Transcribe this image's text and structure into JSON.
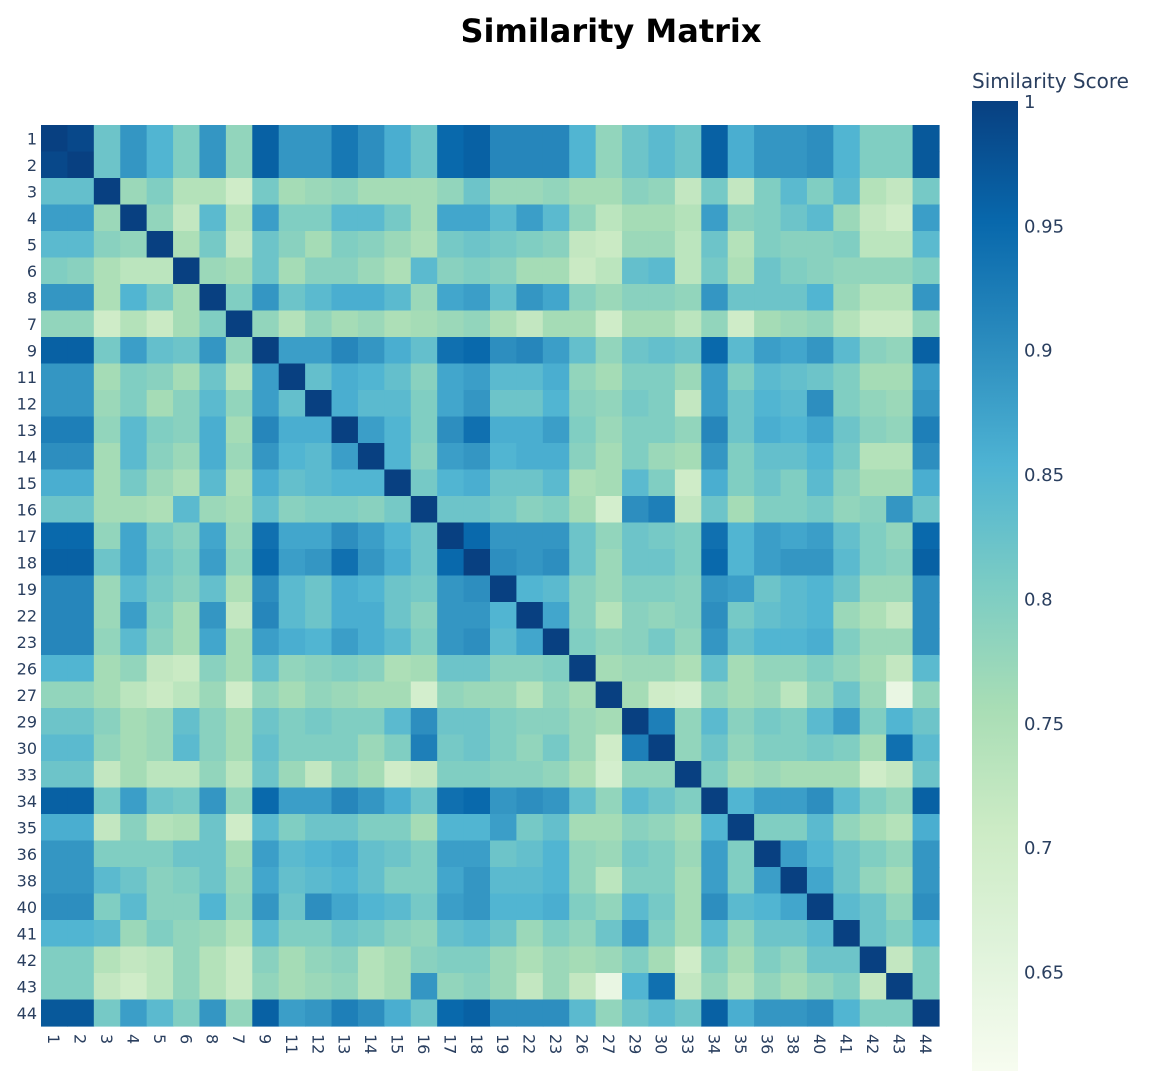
{
  "chart_data": {
    "type": "heatmap",
    "title": "Similarity Matrix",
    "xlabel": "",
    "ylabel": "",
    "colorbar": {
      "title": "Similarity Score",
      "colorscale": "GnBu",
      "range": [
        0.61,
        1
      ],
      "ticks": [
        "1",
        "0.95",
        "0.9",
        "0.85",
        "0.8",
        "0.75",
        "0.7",
        "0.65"
      ]
    },
    "labels": [
      "1",
      "2",
      "3",
      "4",
      "5",
      "6",
      "8",
      "7",
      "9",
      "11",
      "12",
      "13",
      "14",
      "15",
      "16",
      "17",
      "18",
      "19",
      "22",
      "23",
      "26",
      "27",
      "29",
      "30",
      "33",
      "34",
      "35",
      "36",
      "38",
      "40",
      "41",
      "42",
      "43",
      "44"
    ],
    "z": [
      [
        1.0,
        0.99,
        0.82,
        0.89,
        0.85,
        0.8,
        0.89,
        0.78,
        0.96,
        0.89,
        0.89,
        0.93,
        0.9,
        0.86,
        0.82,
        0.95,
        0.96,
        0.91,
        0.91,
        0.91,
        0.85,
        0.78,
        0.82,
        0.84,
        0.82,
        0.96,
        0.86,
        0.89,
        0.89,
        0.9,
        0.85,
        0.8,
        0.8,
        0.97
      ],
      [
        0.99,
        1.0,
        0.82,
        0.89,
        0.85,
        0.8,
        0.89,
        0.78,
        0.96,
        0.89,
        0.89,
        0.93,
        0.9,
        0.86,
        0.82,
        0.95,
        0.96,
        0.91,
        0.91,
        0.91,
        0.85,
        0.78,
        0.82,
        0.84,
        0.82,
        0.96,
        0.86,
        0.89,
        0.89,
        0.9,
        0.85,
        0.8,
        0.8,
        0.97
      ],
      [
        0.83,
        0.83,
        1.0,
        0.77,
        0.8,
        0.74,
        0.74,
        0.7,
        0.81,
        0.76,
        0.77,
        0.78,
        0.76,
        0.76,
        0.76,
        0.78,
        0.82,
        0.77,
        0.77,
        0.78,
        0.76,
        0.76,
        0.79,
        0.78,
        0.72,
        0.81,
        0.72,
        0.8,
        0.84,
        0.8,
        0.84,
        0.74,
        0.72,
        0.81
      ],
      [
        0.88,
        0.88,
        0.77,
        1.0,
        0.78,
        0.72,
        0.84,
        0.74,
        0.88,
        0.8,
        0.8,
        0.84,
        0.84,
        0.81,
        0.76,
        0.87,
        0.87,
        0.84,
        0.88,
        0.84,
        0.78,
        0.73,
        0.76,
        0.76,
        0.74,
        0.88,
        0.79,
        0.8,
        0.82,
        0.84,
        0.77,
        0.72,
        0.7,
        0.88
      ],
      [
        0.84,
        0.84,
        0.79,
        0.78,
        1.0,
        0.75,
        0.81,
        0.72,
        0.82,
        0.79,
        0.76,
        0.8,
        0.79,
        0.77,
        0.75,
        0.81,
        0.82,
        0.81,
        0.8,
        0.79,
        0.72,
        0.71,
        0.77,
        0.77,
        0.73,
        0.82,
        0.74,
        0.8,
        0.79,
        0.79,
        0.8,
        0.73,
        0.73,
        0.84
      ],
      [
        0.8,
        0.79,
        0.75,
        0.73,
        0.73,
        1.0,
        0.77,
        0.76,
        0.82,
        0.76,
        0.79,
        0.79,
        0.77,
        0.75,
        0.84,
        0.79,
        0.8,
        0.79,
        0.76,
        0.76,
        0.71,
        0.73,
        0.83,
        0.84,
        0.73,
        0.81,
        0.75,
        0.82,
        0.8,
        0.79,
        0.78,
        0.78,
        0.78,
        0.8
      ],
      [
        0.89,
        0.89,
        0.75,
        0.85,
        0.81,
        0.76,
        1.0,
        0.8,
        0.89,
        0.82,
        0.84,
        0.86,
        0.86,
        0.84,
        0.77,
        0.87,
        0.88,
        0.83,
        0.89,
        0.87,
        0.79,
        0.77,
        0.79,
        0.79,
        0.78,
        0.89,
        0.82,
        0.82,
        0.82,
        0.85,
        0.77,
        0.74,
        0.74,
        0.89
      ],
      [
        0.78,
        0.78,
        0.7,
        0.74,
        0.71,
        0.76,
        0.8,
        1.0,
        0.78,
        0.74,
        0.78,
        0.76,
        0.77,
        0.75,
        0.76,
        0.77,
        0.78,
        0.75,
        0.72,
        0.76,
        0.76,
        0.7,
        0.76,
        0.76,
        0.73,
        0.78,
        0.7,
        0.76,
        0.77,
        0.78,
        0.74,
        0.71,
        0.71,
        0.78
      ],
      [
        0.96,
        0.96,
        0.81,
        0.88,
        0.83,
        0.82,
        0.89,
        0.78,
        1.0,
        0.88,
        0.88,
        0.91,
        0.89,
        0.86,
        0.83,
        0.94,
        0.95,
        0.9,
        0.91,
        0.88,
        0.83,
        0.78,
        0.82,
        0.83,
        0.82,
        0.95,
        0.84,
        0.88,
        0.87,
        0.89,
        0.84,
        0.79,
        0.78,
        0.96
      ],
      [
        0.89,
        0.89,
        0.76,
        0.8,
        0.79,
        0.76,
        0.82,
        0.74,
        0.88,
        1.0,
        0.83,
        0.86,
        0.85,
        0.83,
        0.79,
        0.87,
        0.88,
        0.84,
        0.84,
        0.86,
        0.78,
        0.76,
        0.8,
        0.8,
        0.77,
        0.88,
        0.8,
        0.84,
        0.83,
        0.82,
        0.8,
        0.76,
        0.76,
        0.88
      ],
      [
        0.89,
        0.89,
        0.77,
        0.8,
        0.76,
        0.79,
        0.84,
        0.78,
        0.88,
        0.83,
        1.0,
        0.86,
        0.84,
        0.84,
        0.8,
        0.87,
        0.89,
        0.82,
        0.82,
        0.85,
        0.79,
        0.78,
        0.81,
        0.8,
        0.72,
        0.88,
        0.82,
        0.85,
        0.84,
        0.9,
        0.8,
        0.78,
        0.77,
        0.89
      ],
      [
        0.92,
        0.92,
        0.78,
        0.84,
        0.8,
        0.79,
        0.86,
        0.76,
        0.91,
        0.86,
        0.86,
        1.0,
        0.88,
        0.85,
        0.8,
        0.9,
        0.94,
        0.86,
        0.86,
        0.88,
        0.8,
        0.77,
        0.8,
        0.8,
        0.78,
        0.91,
        0.82,
        0.86,
        0.85,
        0.87,
        0.82,
        0.79,
        0.78,
        0.92
      ],
      [
        0.9,
        0.9,
        0.76,
        0.84,
        0.79,
        0.77,
        0.86,
        0.77,
        0.89,
        0.85,
        0.84,
        0.88,
        1.0,
        0.85,
        0.79,
        0.88,
        0.89,
        0.85,
        0.86,
        0.86,
        0.79,
        0.76,
        0.8,
        0.77,
        0.76,
        0.89,
        0.8,
        0.83,
        0.83,
        0.85,
        0.81,
        0.74,
        0.74,
        0.9
      ],
      [
        0.86,
        0.86,
        0.76,
        0.81,
        0.77,
        0.75,
        0.84,
        0.75,
        0.86,
        0.83,
        0.84,
        0.85,
        0.85,
        1.0,
        0.81,
        0.85,
        0.86,
        0.82,
        0.82,
        0.84,
        0.75,
        0.76,
        0.84,
        0.8,
        0.7,
        0.86,
        0.8,
        0.82,
        0.8,
        0.84,
        0.79,
        0.76,
        0.76,
        0.86
      ],
      [
        0.82,
        0.82,
        0.76,
        0.76,
        0.75,
        0.84,
        0.77,
        0.76,
        0.83,
        0.79,
        0.8,
        0.8,
        0.79,
        0.81,
        1.0,
        0.82,
        0.82,
        0.81,
        0.79,
        0.8,
        0.76,
        0.69,
        0.9,
        0.92,
        0.72,
        0.82,
        0.76,
        0.8,
        0.8,
        0.81,
        0.78,
        0.79,
        0.89,
        0.82
      ],
      [
        0.95,
        0.95,
        0.78,
        0.87,
        0.81,
        0.79,
        0.87,
        0.77,
        0.94,
        0.87,
        0.87,
        0.9,
        0.88,
        0.85,
        0.82,
        1.0,
        0.95,
        0.89,
        0.89,
        0.89,
        0.82,
        0.78,
        0.82,
        0.81,
        0.8,
        0.94,
        0.85,
        0.88,
        0.87,
        0.88,
        0.83,
        0.8,
        0.78,
        0.95
      ],
      [
        0.96,
        0.96,
        0.82,
        0.87,
        0.82,
        0.8,
        0.88,
        0.78,
        0.95,
        0.88,
        0.89,
        0.94,
        0.89,
        0.86,
        0.82,
        0.95,
        1.0,
        0.9,
        0.89,
        0.9,
        0.82,
        0.77,
        0.82,
        0.82,
        0.8,
        0.95,
        0.85,
        0.88,
        0.89,
        0.89,
        0.84,
        0.8,
        0.79,
        0.96
      ],
      [
        0.91,
        0.91,
        0.77,
        0.84,
        0.81,
        0.79,
        0.83,
        0.75,
        0.9,
        0.84,
        0.82,
        0.86,
        0.85,
        0.82,
        0.81,
        0.89,
        0.9,
        1.0,
        0.85,
        0.84,
        0.79,
        0.77,
        0.8,
        0.8,
        0.79,
        0.89,
        0.88,
        0.82,
        0.84,
        0.85,
        0.82,
        0.77,
        0.77,
        0.9
      ],
      [
        0.91,
        0.91,
        0.77,
        0.88,
        0.8,
        0.76,
        0.89,
        0.72,
        0.91,
        0.84,
        0.82,
        0.86,
        0.86,
        0.82,
        0.79,
        0.89,
        0.89,
        0.85,
        1.0,
        0.87,
        0.79,
        0.74,
        0.79,
        0.78,
        0.79,
        0.9,
        0.81,
        0.83,
        0.84,
        0.85,
        0.77,
        0.75,
        0.72,
        0.9
      ],
      [
        0.91,
        0.91,
        0.78,
        0.84,
        0.79,
        0.76,
        0.87,
        0.76,
        0.88,
        0.86,
        0.85,
        0.88,
        0.86,
        0.84,
        0.8,
        0.89,
        0.9,
        0.84,
        0.87,
        1.0,
        0.8,
        0.78,
        0.79,
        0.81,
        0.78,
        0.89,
        0.83,
        0.85,
        0.85,
        0.86,
        0.8,
        0.77,
        0.77,
        0.9
      ],
      [
        0.85,
        0.85,
        0.76,
        0.78,
        0.72,
        0.71,
        0.79,
        0.76,
        0.83,
        0.78,
        0.79,
        0.8,
        0.79,
        0.75,
        0.76,
        0.82,
        0.82,
        0.79,
        0.79,
        0.8,
        1.0,
        0.76,
        0.77,
        0.77,
        0.75,
        0.83,
        0.76,
        0.78,
        0.78,
        0.8,
        0.78,
        0.76,
        0.72,
        0.84
      ],
      [
        0.78,
        0.78,
        0.76,
        0.73,
        0.71,
        0.73,
        0.77,
        0.7,
        0.78,
        0.76,
        0.78,
        0.77,
        0.76,
        0.76,
        0.69,
        0.78,
        0.77,
        0.77,
        0.74,
        0.78,
        0.76,
        1.0,
        0.76,
        0.7,
        0.69,
        0.78,
        0.76,
        0.77,
        0.73,
        0.78,
        0.82,
        0.77,
        0.64,
        0.78
      ],
      [
        0.82,
        0.82,
        0.79,
        0.76,
        0.77,
        0.83,
        0.79,
        0.76,
        0.82,
        0.8,
        0.81,
        0.8,
        0.8,
        0.84,
        0.9,
        0.82,
        0.82,
        0.8,
        0.79,
        0.79,
        0.77,
        0.76,
        1.0,
        0.92,
        0.78,
        0.84,
        0.79,
        0.81,
        0.8,
        0.84,
        0.88,
        0.8,
        0.85,
        0.82
      ],
      [
        0.84,
        0.84,
        0.78,
        0.76,
        0.77,
        0.84,
        0.79,
        0.76,
        0.83,
        0.8,
        0.8,
        0.8,
        0.77,
        0.8,
        0.92,
        0.81,
        0.82,
        0.8,
        0.78,
        0.81,
        0.77,
        0.7,
        0.92,
        1.0,
        0.78,
        0.82,
        0.78,
        0.8,
        0.8,
        0.81,
        0.8,
        0.76,
        0.94,
        0.84
      ],
      [
        0.82,
        0.82,
        0.72,
        0.76,
        0.73,
        0.73,
        0.78,
        0.73,
        0.82,
        0.77,
        0.72,
        0.78,
        0.76,
        0.7,
        0.72,
        0.8,
        0.8,
        0.79,
        0.79,
        0.78,
        0.75,
        0.69,
        0.78,
        0.78,
        1.0,
        0.8,
        0.76,
        0.77,
        0.76,
        0.76,
        0.76,
        0.7,
        0.72,
        0.82
      ],
      [
        0.96,
        0.96,
        0.81,
        0.88,
        0.82,
        0.81,
        0.89,
        0.78,
        0.95,
        0.88,
        0.88,
        0.91,
        0.89,
        0.86,
        0.82,
        0.94,
        0.95,
        0.89,
        0.9,
        0.89,
        0.83,
        0.78,
        0.84,
        0.82,
        0.8,
        1.0,
        0.85,
        0.88,
        0.88,
        0.9,
        0.84,
        0.8,
        0.78,
        0.96
      ],
      [
        0.86,
        0.86,
        0.72,
        0.79,
        0.74,
        0.75,
        0.82,
        0.7,
        0.84,
        0.8,
        0.82,
        0.82,
        0.8,
        0.8,
        0.76,
        0.85,
        0.85,
        0.88,
        0.81,
        0.83,
        0.76,
        0.76,
        0.79,
        0.78,
        0.76,
        0.85,
        1.0,
        0.8,
        0.8,
        0.84,
        0.78,
        0.76,
        0.74,
        0.86
      ],
      [
        0.89,
        0.89,
        0.8,
        0.8,
        0.8,
        0.82,
        0.82,
        0.76,
        0.88,
        0.84,
        0.85,
        0.86,
        0.83,
        0.82,
        0.8,
        0.88,
        0.88,
        0.82,
        0.83,
        0.85,
        0.78,
        0.77,
        0.81,
        0.8,
        0.77,
        0.88,
        0.8,
        1.0,
        0.88,
        0.85,
        0.82,
        0.8,
        0.78,
        0.89
      ],
      [
        0.89,
        0.89,
        0.84,
        0.82,
        0.79,
        0.8,
        0.82,
        0.77,
        0.87,
        0.83,
        0.84,
        0.85,
        0.83,
        0.8,
        0.8,
        0.87,
        0.89,
        0.84,
        0.84,
        0.85,
        0.78,
        0.73,
        0.8,
        0.8,
        0.76,
        0.88,
        0.8,
        0.88,
        1.0,
        0.87,
        0.82,
        0.78,
        0.76,
        0.89
      ],
      [
        0.9,
        0.9,
        0.8,
        0.84,
        0.79,
        0.79,
        0.85,
        0.78,
        0.89,
        0.82,
        0.9,
        0.87,
        0.85,
        0.84,
        0.81,
        0.88,
        0.89,
        0.85,
        0.85,
        0.86,
        0.8,
        0.78,
        0.84,
        0.81,
        0.76,
        0.9,
        0.84,
        0.85,
        0.87,
        1.0,
        0.84,
        0.82,
        0.78,
        0.9
      ],
      [
        0.85,
        0.85,
        0.84,
        0.77,
        0.8,
        0.78,
        0.77,
        0.74,
        0.84,
        0.8,
        0.8,
        0.82,
        0.81,
        0.79,
        0.78,
        0.83,
        0.84,
        0.82,
        0.77,
        0.8,
        0.78,
        0.82,
        0.88,
        0.8,
        0.76,
        0.84,
        0.78,
        0.82,
        0.82,
        0.84,
        1.0,
        0.82,
        0.8,
        0.85
      ],
      [
        0.8,
        0.8,
        0.74,
        0.72,
        0.73,
        0.78,
        0.74,
        0.71,
        0.79,
        0.76,
        0.78,
        0.79,
        0.74,
        0.76,
        0.79,
        0.8,
        0.8,
        0.77,
        0.75,
        0.77,
        0.76,
        0.77,
        0.8,
        0.76,
        0.7,
        0.8,
        0.76,
        0.8,
        0.78,
        0.82,
        0.82,
        1.0,
        0.72,
        0.8
      ],
      [
        0.8,
        0.8,
        0.72,
        0.7,
        0.73,
        0.78,
        0.74,
        0.71,
        0.78,
        0.76,
        0.77,
        0.78,
        0.74,
        0.76,
        0.89,
        0.78,
        0.79,
        0.77,
        0.72,
        0.77,
        0.72,
        0.64,
        0.85,
        0.94,
        0.72,
        0.78,
        0.74,
        0.78,
        0.76,
        0.78,
        0.8,
        0.72,
        1.0,
        0.8
      ],
      [
        0.97,
        0.97,
        0.81,
        0.88,
        0.84,
        0.8,
        0.89,
        0.78,
        0.96,
        0.88,
        0.89,
        0.92,
        0.9,
        0.86,
        0.82,
        0.95,
        0.96,
        0.9,
        0.9,
        0.9,
        0.84,
        0.78,
        0.82,
        0.84,
        0.82,
        0.96,
        0.86,
        0.89,
        0.89,
        0.9,
        0.85,
        0.8,
        0.8,
        1.0
      ]
    ]
  }
}
